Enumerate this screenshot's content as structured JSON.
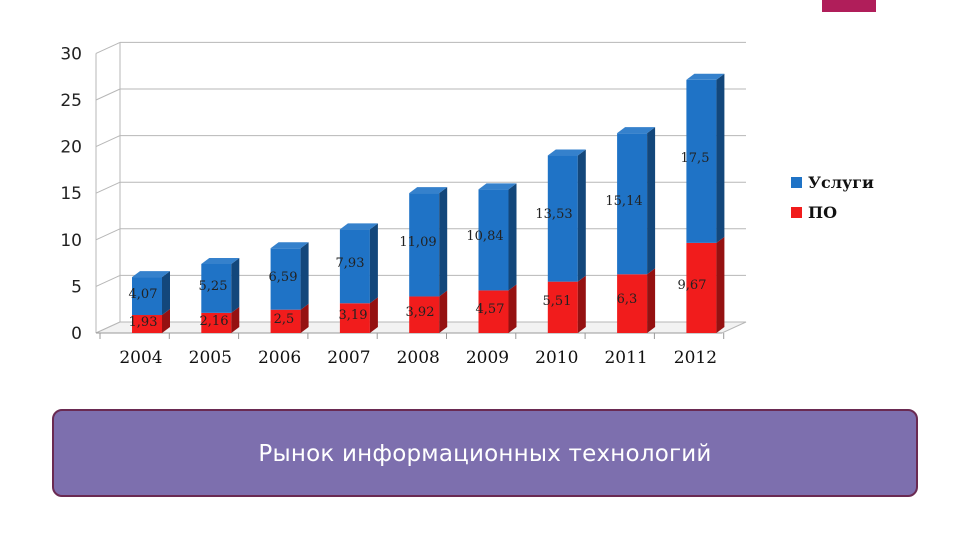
{
  "colors": {
    "services": "#1f73c6",
    "software": "#f11c1c",
    "accent": "#b01e5a",
    "caption_bg": "#7d6fae"
  },
  "caption": "Рынок информационных технологий",
  "chart_data": {
    "type": "bar",
    "stacked": true,
    "style": "3d",
    "categories": [
      "2004",
      "2005",
      "2006",
      "2007",
      "2008",
      "2009",
      "2010",
      "2011",
      "2012"
    ],
    "series": [
      {
        "name": "ПО",
        "color": "#f11c1c",
        "values": [
          1.93,
          2.16,
          2.5,
          3.19,
          3.92,
          4.57,
          5.51,
          6.3,
          9.67
        ],
        "labels": [
          "1,93",
          "2,16",
          "2,5",
          "3,19",
          "3,92",
          "4,57",
          "5,51",
          "6,3",
          "9,67"
        ]
      },
      {
        "name": "Услуги",
        "color": "#1f73c6",
        "values": [
          4.07,
          5.25,
          6.59,
          7.93,
          11.09,
          10.84,
          13.53,
          15.14,
          17.5
        ],
        "labels": [
          "4,07",
          "5,25",
          "6,59",
          "7,93",
          "11,09",
          "10,84",
          "13,53",
          "15,14",
          "17,5"
        ]
      }
    ],
    "yticks": [
      "0",
      "5",
      "10",
      "15",
      "20",
      "25",
      "30"
    ],
    "ylim": [
      0,
      30
    ],
    "grid": true,
    "legend": {
      "position": "right",
      "entries": [
        "Услуги",
        "ПО"
      ]
    }
  }
}
